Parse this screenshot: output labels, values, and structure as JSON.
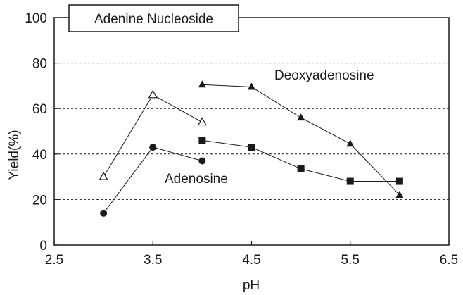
{
  "chart_data": {
    "type": "line",
    "title": "Adenine Nucleoside",
    "xlabel": "pH",
    "ylabel": "Yield(%)",
    "xlim": [
      2.5,
      6.5
    ],
    "ylim": [
      0,
      100
    ],
    "x_ticks": [
      2.5,
      3.5,
      4.5,
      5.5,
      6.5
    ],
    "x_tick_labels": [
      "2.5",
      "3.5",
      "4.5",
      "5.5",
      "6.5"
    ],
    "y_ticks": [
      0,
      20,
      40,
      60,
      80,
      100
    ],
    "y_tick_labels": [
      "0",
      "20",
      "40",
      "60",
      "80",
      "100"
    ],
    "grid": "horizontal dashed at 20, 40, 60, 80",
    "legend": "none",
    "annotations": [
      "Deoxyadenosine",
      "Adenosine"
    ],
    "series": [
      {
        "marker": "open-triangle",
        "x": [
          3.0,
          3.5,
          4.0
        ],
        "y": [
          30,
          66,
          54
        ]
      },
      {
        "marker": "filled-circle",
        "x": [
          3.0,
          3.5,
          4.0
        ],
        "y": [
          14,
          43,
          37
        ]
      },
      {
        "marker": "filled-triangle",
        "x": [
          4.0,
          4.5,
          5.0,
          5.5,
          6.0
        ],
        "y": [
          70.5,
          69.5,
          56,
          44.5,
          22
        ]
      },
      {
        "marker": "filled-square",
        "x": [
          4.0,
          4.5,
          5.0,
          5.5,
          6.0
        ],
        "y": [
          46,
          43,
          33.5,
          28,
          28
        ]
      }
    ]
  }
}
